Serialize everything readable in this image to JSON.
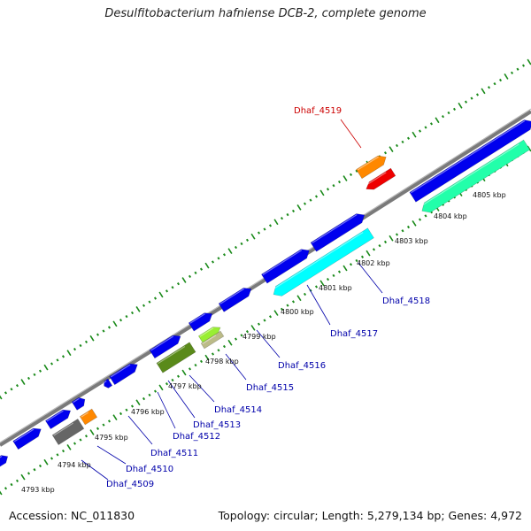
{
  "title": "Desulfitobacterium hafniense DCB-2, complete genome",
  "footer": {
    "accession": "Accession: NC_011830",
    "summary": "Topology: circular; Length: 5,279,134 bp; Genes: 4,972"
  },
  "colors": {
    "backbone": "#7a7a7a",
    "forward_gene": "#0000ee",
    "tick": "#1a8a1a",
    "label_blue": "#0000aa",
    "label_red": "#cc0000",
    "orange": "#ff8800",
    "red": "#ee0000",
    "cyan": "#00ffff",
    "teal": "#22ffaa",
    "olive": "#5a8a1a",
    "lime": "#99ee33",
    "tan": "#bbbb88",
    "gray": "#666666"
  },
  "kbp_labels": [
    "4793 kbp",
    "4794 kbp",
    "4795 kbp",
    "4796 kbp",
    "4797 kbp",
    "4798 kbp",
    "4799 kbp",
    "4800 kbp",
    "4801 kbp",
    "4802 kbp",
    "4803 kbp",
    "4804 kbp",
    "4805 kbp"
  ],
  "gene_labels": [
    {
      "name": "Dhaf_4509",
      "highlight": false
    },
    {
      "name": "Dhaf_4510",
      "highlight": false
    },
    {
      "name": "Dhaf_4511",
      "highlight": false
    },
    {
      "name": "Dhaf_4512",
      "highlight": false
    },
    {
      "name": "Dhaf_4513",
      "highlight": false
    },
    {
      "name": "Dhaf_4514",
      "highlight": false
    },
    {
      "name": "Dhaf_4515",
      "highlight": false
    },
    {
      "name": "Dhaf_4516",
      "highlight": false
    },
    {
      "name": "Dhaf_4517",
      "highlight": false
    },
    {
      "name": "Dhaf_4518",
      "highlight": false
    },
    {
      "name": "Dhaf_4519",
      "highlight": true
    }
  ]
}
